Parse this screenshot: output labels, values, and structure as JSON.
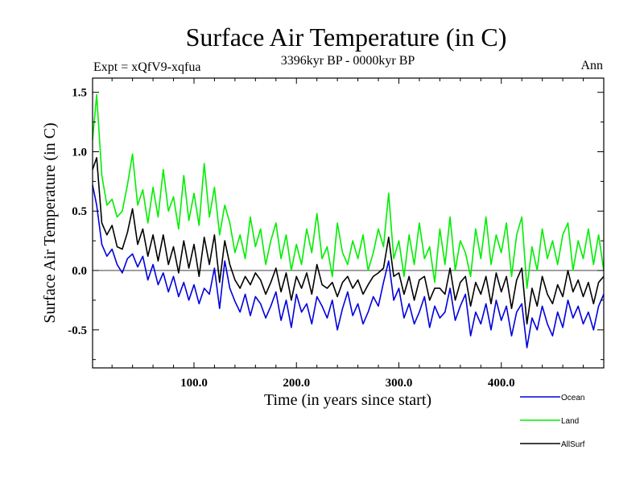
{
  "chart_data": {
    "type": "line",
    "title": "Surface Air Temperature (in C)",
    "subtitle": "3396kyr BP - 0000kyr BP",
    "left_label": "Expt = xQfV9-xqfua",
    "right_label": "Ann",
    "xlabel": "Time (in years since start)",
    "ylabel": "Surface Air Temperature (in C)",
    "xlim": [
      1,
      500
    ],
    "ylim": [
      -0.82,
      1.62
    ],
    "x_ticks": [
      100,
      200,
      300,
      400
    ],
    "x_tick_labels": [
      "100.0",
      "200.0",
      "300.0",
      "400.0"
    ],
    "y_ticks": [
      -0.5,
      0.0,
      0.5,
      1.0,
      1.5
    ],
    "y_tick_labels": [
      "-0.5",
      "0.0",
      "0.5",
      "1.0",
      "1.5"
    ],
    "reference_line": 0.0,
    "legend_position": "bottom-right",
    "series": [
      {
        "name": "Ocean",
        "color": "#0000dd",
        "x": [
          1,
          5,
          10,
          15,
          20,
          25,
          30,
          35,
          40,
          45,
          50,
          55,
          60,
          65,
          70,
          75,
          80,
          85,
          90,
          95,
          100,
          105,
          110,
          115,
          120,
          125,
          130,
          135,
          140,
          145,
          150,
          155,
          160,
          165,
          170,
          175,
          180,
          185,
          190,
          195,
          200,
          205,
          210,
          215,
          220,
          225,
          230,
          235,
          240,
          245,
          250,
          255,
          260,
          265,
          270,
          275,
          280,
          285,
          290,
          295,
          300,
          305,
          310,
          315,
          320,
          325,
          330,
          335,
          340,
          345,
          350,
          355,
          360,
          365,
          370,
          375,
          380,
          385,
          390,
          395,
          400,
          405,
          410,
          415,
          420,
          425,
          430,
          435,
          440,
          445,
          450,
          455,
          460,
          465,
          470,
          475,
          480,
          485,
          490,
          495,
          500
        ],
        "values": [
          0.72,
          0.55,
          0.22,
          0.12,
          0.18,
          0.05,
          -0.02,
          0.1,
          0.14,
          0.03,
          0.12,
          -0.08,
          0.05,
          -0.12,
          -0.02,
          -0.18,
          -0.05,
          -0.22,
          -0.1,
          -0.25,
          -0.12,
          -0.28,
          -0.15,
          -0.2,
          0.02,
          -0.32,
          0.08,
          -0.15,
          -0.26,
          -0.35,
          -0.2,
          -0.38,
          -0.22,
          -0.28,
          -0.4,
          -0.3,
          -0.18,
          -0.42,
          -0.25,
          -0.48,
          -0.2,
          -0.35,
          -0.28,
          -0.45,
          -0.22,
          -0.3,
          -0.4,
          -0.25,
          -0.5,
          -0.32,
          -0.18,
          -0.38,
          -0.28,
          -0.45,
          -0.35,
          -0.22,
          -0.3,
          -0.1,
          0.08,
          -0.25,
          -0.15,
          -0.4,
          -0.28,
          -0.45,
          -0.35,
          -0.22,
          -0.48,
          -0.3,
          -0.4,
          -0.35,
          -0.15,
          -0.42,
          -0.3,
          -0.2,
          -0.55,
          -0.35,
          -0.45,
          -0.28,
          -0.5,
          -0.25,
          -0.42,
          -0.3,
          -0.55,
          -0.35,
          -0.28,
          -0.65,
          -0.4,
          -0.5,
          -0.3,
          -0.45,
          -0.55,
          -0.35,
          -0.48,
          -0.25,
          -0.4,
          -0.3,
          -0.45,
          -0.35,
          -0.5,
          -0.3,
          -0.2
        ]
      },
      {
        "name": "Land",
        "color": "#00ee00",
        "x": [
          1,
          5,
          10,
          15,
          20,
          25,
          30,
          35,
          40,
          45,
          50,
          55,
          60,
          65,
          70,
          75,
          80,
          85,
          90,
          95,
          100,
          105,
          110,
          115,
          120,
          125,
          130,
          135,
          140,
          145,
          150,
          155,
          160,
          165,
          170,
          175,
          180,
          185,
          190,
          195,
          200,
          205,
          210,
          215,
          220,
          225,
          230,
          235,
          240,
          245,
          250,
          255,
          260,
          265,
          270,
          275,
          280,
          285,
          290,
          295,
          300,
          305,
          310,
          315,
          320,
          325,
          330,
          335,
          340,
          345,
          350,
          355,
          360,
          365,
          370,
          375,
          380,
          385,
          390,
          395,
          400,
          405,
          410,
          415,
          420,
          425,
          430,
          435,
          440,
          445,
          450,
          455,
          460,
          465,
          470,
          475,
          480,
          485,
          490,
          495,
          500
        ],
        "values": [
          1.1,
          1.48,
          0.8,
          0.55,
          0.6,
          0.45,
          0.5,
          0.72,
          0.98,
          0.55,
          0.68,
          0.4,
          0.7,
          0.45,
          0.85,
          0.5,
          0.62,
          0.35,
          0.8,
          0.42,
          0.65,
          0.38,
          0.9,
          0.45,
          0.7,
          0.3,
          0.55,
          0.4,
          0.15,
          0.3,
          0.1,
          0.45,
          0.2,
          0.35,
          0.05,
          0.25,
          0.4,
          0.1,
          0.3,
          0.0,
          0.22,
          0.05,
          0.35,
          0.15,
          0.48,
          0.1,
          0.2,
          -0.05,
          0.4,
          0.15,
          0.05,
          0.25,
          0.1,
          0.3,
          0.0,
          0.15,
          0.35,
          0.2,
          0.65,
          0.1,
          0.25,
          -0.05,
          0.3,
          0.05,
          0.4,
          0.1,
          0.2,
          -0.1,
          0.35,
          0.05,
          0.45,
          0.0,
          0.25,
          0.15,
          -0.05,
          0.35,
          0.1,
          0.45,
          0.05,
          0.3,
          0.15,
          0.4,
          -0.05,
          0.3,
          0.45,
          -0.15,
          0.2,
          0.0,
          0.35,
          0.1,
          0.25,
          0.05,
          0.3,
          0.4,
          0.0,
          0.25,
          0.1,
          0.35,
          0.05,
          0.3,
          0.0
        ]
      },
      {
        "name": "AllSurf",
        "color": "#000000",
        "x": [
          1,
          5,
          10,
          15,
          20,
          25,
          30,
          35,
          40,
          45,
          50,
          55,
          60,
          65,
          70,
          75,
          80,
          85,
          90,
          95,
          100,
          105,
          110,
          115,
          120,
          125,
          130,
          135,
          140,
          145,
          150,
          155,
          160,
          165,
          170,
          175,
          180,
          185,
          190,
          195,
          200,
          205,
          210,
          215,
          220,
          225,
          230,
          235,
          240,
          245,
          250,
          255,
          260,
          265,
          270,
          275,
          280,
          285,
          290,
          295,
          300,
          305,
          310,
          315,
          320,
          325,
          330,
          335,
          340,
          345,
          350,
          355,
          360,
          365,
          370,
          375,
          380,
          385,
          390,
          395,
          400,
          405,
          410,
          415,
          420,
          425,
          430,
          435,
          440,
          445,
          450,
          455,
          460,
          465,
          470,
          475,
          480,
          485,
          490,
          495,
          500
        ],
        "values": [
          0.85,
          0.95,
          0.4,
          0.3,
          0.38,
          0.2,
          0.18,
          0.32,
          0.52,
          0.22,
          0.35,
          0.12,
          0.3,
          0.08,
          0.3,
          0.05,
          0.2,
          -0.02,
          0.25,
          0.02,
          0.22,
          -0.05,
          0.28,
          0.05,
          0.3,
          -0.1,
          0.25,
          0.05,
          -0.08,
          -0.15,
          -0.05,
          -0.12,
          -0.02,
          -0.08,
          -0.2,
          -0.1,
          0.02,
          -0.18,
          -0.02,
          -0.25,
          -0.05,
          -0.15,
          -0.02,
          -0.2,
          0.05,
          -0.12,
          -0.15,
          -0.1,
          -0.22,
          -0.1,
          -0.05,
          -0.15,
          -0.08,
          -0.2,
          -0.12,
          -0.05,
          -0.02,
          0.02,
          0.28,
          -0.05,
          -0.02,
          -0.2,
          -0.05,
          -0.25,
          -0.08,
          -0.05,
          -0.25,
          -0.15,
          -0.15,
          -0.2,
          0.02,
          -0.25,
          -0.1,
          -0.05,
          -0.3,
          -0.1,
          -0.2,
          -0.05,
          -0.28,
          -0.02,
          -0.18,
          -0.05,
          -0.32,
          -0.08,
          0.02,
          -0.45,
          -0.15,
          -0.3,
          -0.05,
          -0.2,
          -0.28,
          -0.12,
          -0.22,
          0.0,
          -0.18,
          -0.08,
          -0.22,
          -0.1,
          -0.28,
          -0.1,
          -0.05
        ]
      }
    ]
  }
}
